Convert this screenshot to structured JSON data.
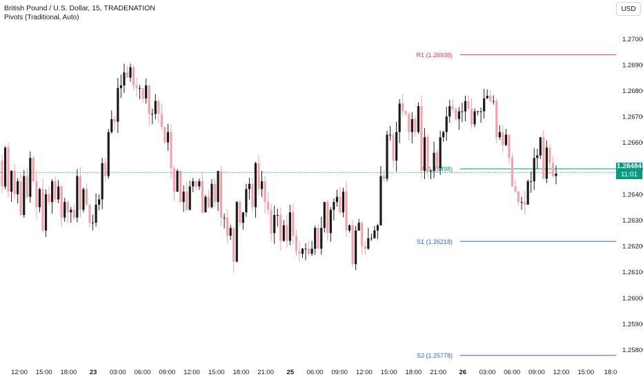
{
  "header": {
    "title": "British Pound / U.S. Dollar, 15, TRADENATION",
    "indicator": "Pivots (Traditional, Auto)",
    "currency_button": "USD"
  },
  "price_badge": {
    "price": "1.26484",
    "countdown": "11:01",
    "color": "#089981"
  },
  "chart_data": {
    "type": "candlestick",
    "y_range": [
      1.2574,
      1.2707
    ],
    "y_ticks": [
      "1.27000",
      "1.26900",
      "1.26800",
      "1.26700",
      "1.26600",
      "1.26500",
      "1.26400",
      "1.26300",
      "1.26200",
      "1.26100",
      "1.26000",
      "1.25900",
      "1.25800"
    ],
    "y_tick_values": [
      1.27,
      1.269,
      1.268,
      1.267,
      1.266,
      1.265,
      1.264,
      1.263,
      1.262,
      1.261,
      1.26,
      1.259,
      1.258
    ],
    "x_ticks": [
      {
        "label": "12:00",
        "bold": false
      },
      {
        "label": "15:00",
        "bold": false
      },
      {
        "label": "18:00",
        "bold": false
      },
      {
        "label": "23",
        "bold": true
      },
      {
        "label": "03:00",
        "bold": false
      },
      {
        "label": "06:00",
        "bold": false
      },
      {
        "label": "09:00",
        "bold": false
      },
      {
        "label": "12:00",
        "bold": false
      },
      {
        "label": "15:00",
        "bold": false
      },
      {
        "label": "18:00",
        "bold": false
      },
      {
        "label": "21:00",
        "bold": false
      },
      {
        "label": "25",
        "bold": true
      },
      {
        "label": "06:00",
        "bold": false
      },
      {
        "label": "09:00",
        "bold": false
      },
      {
        "label": "12:00",
        "bold": false
      },
      {
        "label": "15:00",
        "bold": false
      },
      {
        "label": "18:00",
        "bold": false
      },
      {
        "label": "21:00",
        "bold": false
      },
      {
        "label": "26",
        "bold": true
      },
      {
        "label": "03:00",
        "bold": false
      },
      {
        "label": "06:00",
        "bold": false
      },
      {
        "label": "09:00",
        "bold": false
      },
      {
        "label": "12:00",
        "bold": false
      },
      {
        "label": "15:00",
        "bold": false
      },
      {
        "label": "18:0",
        "bold": false
      }
    ],
    "pivots": [
      {
        "name": "R1",
        "label": "R1 (1.26938)",
        "value": 1.26938,
        "color": "#f23645"
      },
      {
        "name": "P",
        "label": "P (1.26498)",
        "value": 1.26498,
        "color": "#089981"
      },
      {
        "name": "S1",
        "label": "S1 (1.26218)",
        "value": 1.26218,
        "color": "#2962ff"
      },
      {
        "name": "S2",
        "label": "S2 (1.25778)",
        "value": 1.25778,
        "color": "#2962ff"
      }
    ],
    "current_price": 1.26484,
    "path": [
      1.2653,
      1.2643,
      1.2658,
      1.2641,
      1.2649,
      1.264,
      1.2645,
      1.2632,
      1.2647,
      1.2639,
      1.2654,
      1.2645,
      1.2635,
      1.2642,
      1.2626,
      1.264,
      1.2637,
      1.2645,
      1.2638,
      1.2643,
      1.2631,
      1.2637,
      1.2633,
      1.2634,
      1.2631,
      1.2647,
      1.2634,
      1.2642,
      1.2636,
      1.2629,
      1.2629,
      1.2636,
      1.2638,
      1.2652,
      1.2647,
      1.2664,
      1.2669,
      1.2668,
      1.2681,
      1.2682,
      1.2687,
      1.2685,
      1.2689,
      1.2682,
      1.2681,
      1.2681,
      1.2677,
      1.2682,
      1.2671,
      1.2671,
      1.2676,
      1.2671,
      1.2666,
      1.266,
      1.2664,
      1.265,
      1.2641,
      1.2649,
      1.2637,
      1.2641,
      1.2634,
      1.2643,
      1.2645,
      1.2643,
      1.2645,
      1.2633,
      1.2639,
      1.2635,
      1.2644,
      1.2637,
      1.2649,
      1.2631,
      1.2631,
      1.2624,
      1.2627,
      1.2614,
      1.2637,
      1.2629,
      1.2633,
      1.2642,
      1.2644,
      1.2635,
      1.2652,
      1.2642,
      1.2645,
      1.2637,
      1.2634,
      1.2625,
      1.2632,
      1.2632,
      1.2622,
      1.2628,
      1.2622,
      1.2633,
      1.2624,
      1.2618,
      1.2617,
      1.2619,
      1.2619,
      1.2617,
      1.2619,
      1.2627,
      1.2619,
      1.2627,
      1.2637,
      1.2625,
      1.2634,
      1.2637,
      1.2639,
      1.2633,
      1.2641,
      1.2626,
      1.2628,
      1.2613,
      1.2626,
      1.2629,
      1.262,
      1.2619,
      1.2623,
      1.2623,
      1.2626,
      1.2628,
      1.2647,
      1.2646,
      1.2663,
      1.2663,
      1.2653,
      1.2664,
      1.2675,
      1.2672,
      1.2671,
      1.2664,
      1.2669,
      1.2664,
      1.2674,
      1.2649,
      1.2662,
      1.2649,
      1.2649,
      1.2656,
      1.265,
      1.2662,
      1.2664,
      1.267,
      1.2674,
      1.2673,
      1.2669,
      1.2672,
      1.2672,
      1.2676,
      1.2673,
      1.2667,
      1.2672,
      1.2672,
      1.2672,
      1.2677,
      1.2678,
      1.2676,
      1.2676,
      1.2662,
      1.2664,
      1.2659,
      1.2663,
      1.2654,
      1.2643,
      1.2641,
      1.2637,
      1.2637,
      1.2636,
      1.2645,
      1.2645,
      1.2654,
      1.2655,
      1.2662,
      1.2646,
      1.2658,
      1.2652,
      1.2647,
      1.2648
    ]
  }
}
